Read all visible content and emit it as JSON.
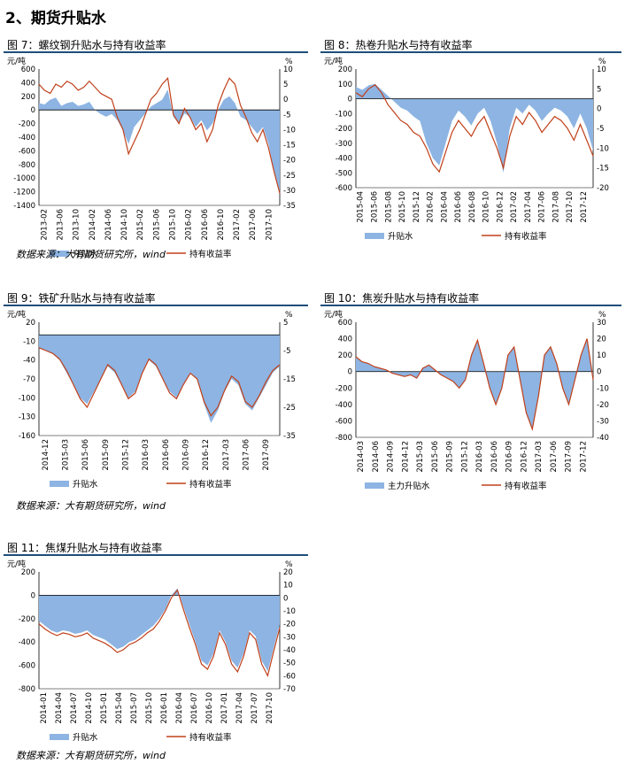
{
  "page": {
    "section_title": "2、期货升贴水",
    "source_text": "数据来源：大有期货研究所，wind"
  },
  "colors": {
    "bar": "#8db4e2",
    "line": "#c0401a",
    "title_rule": "#1f4e79"
  },
  "chart_data": [
    {
      "id": "fig7",
      "title": "图 7：螺纹钢升贴水与持有收益率",
      "type": "area",
      "left_unit": "元/吨",
      "right_unit": "%",
      "left_ticks": [
        600,
        400,
        200,
        0,
        -200,
        -400,
        -600,
        -800,
        -1000,
        -1200,
        -1400
      ],
      "right_ticks": [
        10,
        5,
        0,
        -5,
        -10,
        -15,
        -20,
        -25,
        -30,
        -35
      ],
      "ylim": [
        -1400,
        600
      ],
      "y2lim": [
        -35,
        10
      ],
      "x_ticks": [
        "2013-02",
        "2013-06",
        "2013-10",
        "2014-02",
        "2014-06",
        "2014-10",
        "2015-02",
        "2015-06",
        "2015-10",
        "2016-02",
        "2016-06",
        "2016-10",
        "2017-02",
        "2017-06",
        "2017-10"
      ],
      "series": [
        {
          "name": "升贴水",
          "kind": "area",
          "axis": "left",
          "values": [
            100,
            80,
            150,
            180,
            60,
            100,
            120,
            60,
            80,
            120,
            0,
            -60,
            -100,
            -60,
            -150,
            -300,
            -500,
            -250,
            -150,
            -50,
            50,
            100,
            150,
            300,
            -100,
            -200,
            -50,
            -100,
            -250,
            -150,
            -300,
            -200,
            0,
            150,
            200,
            100,
            -100,
            -150,
            -250,
            -350,
            -250,
            -500,
            -900,
            -1200
          ]
        },
        {
          "name": "持有收益率",
          "kind": "line",
          "axis": "right",
          "values": [
            5,
            3,
            2,
            5,
            4,
            6,
            5,
            3,
            4,
            6,
            4,
            2,
            1,
            0,
            -6,
            -10,
            -18,
            -14,
            -10,
            -5,
            0,
            2,
            5,
            7,
            -5,
            -8,
            -3,
            -6,
            -10,
            -8,
            -14,
            -10,
            -2,
            3,
            7,
            5,
            -2,
            -6,
            -11,
            -14,
            -10,
            -16,
            -24,
            -31
          ]
        }
      ],
      "legend": [
        "升贴水",
        "持有收益率"
      ],
      "legend_position": "bottom"
    },
    {
      "id": "fig8",
      "title": "图 8：热卷升贴水与持有收益率",
      "type": "area",
      "left_unit": "元/吨",
      "right_unit": "%",
      "left_ticks": [
        200,
        100,
        0,
        -100,
        -200,
        -300,
        -400,
        -500,
        -600
      ],
      "right_ticks": [
        10,
        5,
        0,
        -5,
        -10,
        -15,
        -20
      ],
      "ylim": [
        -600,
        200
      ],
      "y2lim": [
        -20,
        10
      ],
      "x_ticks": [
        "2015-04",
        "2015-06",
        "2015-08",
        "2015-10",
        "2015-12",
        "2016-02",
        "2016-04",
        "2016-06",
        "2016-08",
        "2016-10",
        "2016-12",
        "2017-02",
        "2017-04",
        "2017-06",
        "2017-08",
        "2017-10",
        "2017-12"
      ],
      "series": [
        {
          "name": "升贴水",
          "kind": "area",
          "axis": "left",
          "values": [
            80,
            60,
            90,
            100,
            60,
            20,
            -20,
            -60,
            -80,
            -120,
            -150,
            -300,
            -400,
            -450,
            -300,
            -150,
            -80,
            -120,
            -180,
            -100,
            -60,
            -150,
            -300,
            -500,
            -200,
            -60,
            -100,
            -40,
            -80,
            -150,
            -100,
            -60,
            -80,
            -120,
            -200,
            -100,
            -200,
            -350
          ]
        },
        {
          "name": "持有收益率",
          "kind": "line",
          "axis": "right",
          "values": [
            4,
            3,
            5,
            6,
            4,
            1,
            -1,
            -3,
            -4,
            -6,
            -7,
            -10,
            -14,
            -16,
            -11,
            -6,
            -3,
            -5,
            -7,
            -4,
            -2,
            -6,
            -10,
            -15,
            -7,
            -2,
            -4,
            -1,
            -3,
            -6,
            -4,
            -2,
            -3,
            -5,
            -8,
            -4,
            -8,
            -12
          ]
        }
      ],
      "legend": [
        "升贴水",
        "持有收益率"
      ],
      "legend_position": "bottom"
    },
    {
      "id": "fig9",
      "title": "图 9：铁矿升贴水与持有收益率",
      "type": "area",
      "left_unit": "元/吨",
      "right_unit": "%",
      "left_ticks": [
        20,
        -10,
        -40,
        -70,
        -100,
        -130,
        -160
      ],
      "right_ticks": [
        5,
        -5,
        -15,
        -25,
        -35
      ],
      "ylim": [
        -160,
        20
      ],
      "y2lim": [
        -35,
        5
      ],
      "x_ticks": [
        "2014-12",
        "2015-03",
        "2015-06",
        "2015-09",
        "2015-12",
        "2016-03",
        "2016-06",
        "2016-09",
        "2016-12",
        "2017-03",
        "2017-06",
        "2017-09"
      ],
      "series": [
        {
          "name": "升贴水",
          "kind": "area",
          "axis": "left",
          "values": [
            -20,
            -25,
            -30,
            -40,
            -60,
            -80,
            -100,
            -110,
            -90,
            -70,
            -50,
            -60,
            -80,
            -100,
            -90,
            -60,
            -40,
            -50,
            -70,
            -90,
            -100,
            -80,
            -60,
            -70,
            -110,
            -140,
            -120,
            -90,
            -70,
            -80,
            -110,
            -120,
            -100,
            -80,
            -60,
            -50
          ]
        },
        {
          "name": "持有收益率",
          "kind": "line",
          "axis": "right",
          "values": [
            -4,
            -5,
            -6,
            -8,
            -12,
            -17,
            -22,
            -25,
            -20,
            -15,
            -10,
            -12,
            -17,
            -22,
            -20,
            -13,
            -8,
            -10,
            -15,
            -20,
            -22,
            -17,
            -13,
            -15,
            -23,
            -28,
            -25,
            -19,
            -14,
            -16,
            -23,
            -25,
            -21,
            -16,
            -12,
            -10
          ]
        }
      ],
      "legend": [
        "升贴水",
        "持有收益率"
      ],
      "legend_position": "bottom"
    },
    {
      "id": "fig10",
      "title": "图 10：焦炭升贴水与持有收益率",
      "type": "area",
      "left_unit": "元/吨",
      "right_unit": "%",
      "left_ticks": [
        600,
        400,
        200,
        0,
        -200,
        -400,
        -600,
        -800
      ],
      "right_ticks": [
        30,
        20,
        10,
        0,
        -10,
        -20,
        -30,
        -40
      ],
      "ylim": [
        -800,
        600
      ],
      "y2lim": [
        -40,
        30
      ],
      "x_ticks": [
        "2014-03",
        "2014-06",
        "2014-09",
        "2014-12",
        "2015-03",
        "2015-06",
        "2015-09",
        "2015-12",
        "2016-03",
        "2016-06",
        "2016-09",
        "2016-12",
        "2017-03",
        "2017-06",
        "2017-09",
        "2017-12"
      ],
      "series": [
        {
          "name": "主力升贴水",
          "kind": "area",
          "axis": "left",
          "values": [
            180,
            120,
            100,
            60,
            40,
            20,
            -20,
            -40,
            -60,
            -40,
            -80,
            40,
            80,
            20,
            -40,
            -80,
            -120,
            -200,
            -100,
            200,
            380,
            100,
            -200,
            -400,
            -200,
            200,
            300,
            -100,
            -500,
            -700,
            -300,
            200,
            300,
            100,
            -200,
            -400,
            -100,
            200,
            400,
            -100
          ]
        },
        {
          "name": "持有收益率",
          "kind": "line",
          "axis": "right",
          "values": [
            9,
            6,
            5,
            3,
            2,
            1,
            -1,
            -2,
            -3,
            -2,
            -4,
            2,
            4,
            1,
            -2,
            -4,
            -6,
            -10,
            -5,
            10,
            19,
            5,
            -10,
            -20,
            -10,
            10,
            15,
            -5,
            -25,
            -35,
            -15,
            10,
            15,
            5,
            -10,
            -20,
            -5,
            10,
            20,
            -5
          ]
        }
      ],
      "legend": [
        "主力升贴水",
        "持有收益率"
      ],
      "legend_position": "bottom"
    },
    {
      "id": "fig11",
      "title": "图 11：焦煤升贴水与持有收益率",
      "type": "area",
      "left_unit": "元/吨",
      "right_unit": "%",
      "left_ticks": [
        200,
        0,
        -200,
        -400,
        -600,
        -800
      ],
      "right_ticks": [
        20,
        10,
        0,
        -10,
        -20,
        -30,
        -40,
        -50,
        -60,
        -70
      ],
      "ylim": [
        -800,
        200
      ],
      "y2lim": [
        -70,
        20
      ],
      "x_ticks": [
        "2014-01",
        "2014-04",
        "2014-07",
        "2014-10",
        "2015-01",
        "2015-04",
        "2015-07",
        "2015-10",
        "2016-01",
        "2016-04",
        "2016-07",
        "2016-10",
        "2017-01",
        "2017-04",
        "2017-07",
        "2017-10"
      ],
      "series": [
        {
          "name": "升贴水",
          "kind": "area",
          "axis": "left",
          "values": [
            -220,
            -260,
            -300,
            -320,
            -300,
            -310,
            -330,
            -320,
            -300,
            -340,
            -360,
            -380,
            -420,
            -460,
            -440,
            -400,
            -380,
            -340,
            -300,
            -260,
            -200,
            -120,
            0,
            60,
            -100,
            -250,
            -400,
            -560,
            -600,
            -500,
            -300,
            -400,
            -560,
            -620,
            -500,
            -300,
            -350,
            -560,
            -650,
            -450,
            -250
          ]
        },
        {
          "name": "持有收益率",
          "kind": "line",
          "axis": "right",
          "values": [
            -20,
            -24,
            -27,
            -29,
            -27,
            -28,
            -30,
            -29,
            -27,
            -31,
            -33,
            -35,
            -38,
            -42,
            -40,
            -36,
            -34,
            -31,
            -27,
            -24,
            -18,
            -10,
            0,
            6,
            -9,
            -23,
            -36,
            -51,
            -55,
            -45,
            -27,
            -36,
            -51,
            -57,
            -45,
            -27,
            -32,
            -51,
            -60,
            -41,
            -23
          ]
        }
      ],
      "legend": [
        "升贴水",
        "持有收益率"
      ],
      "legend_position": "bottom"
    }
  ]
}
